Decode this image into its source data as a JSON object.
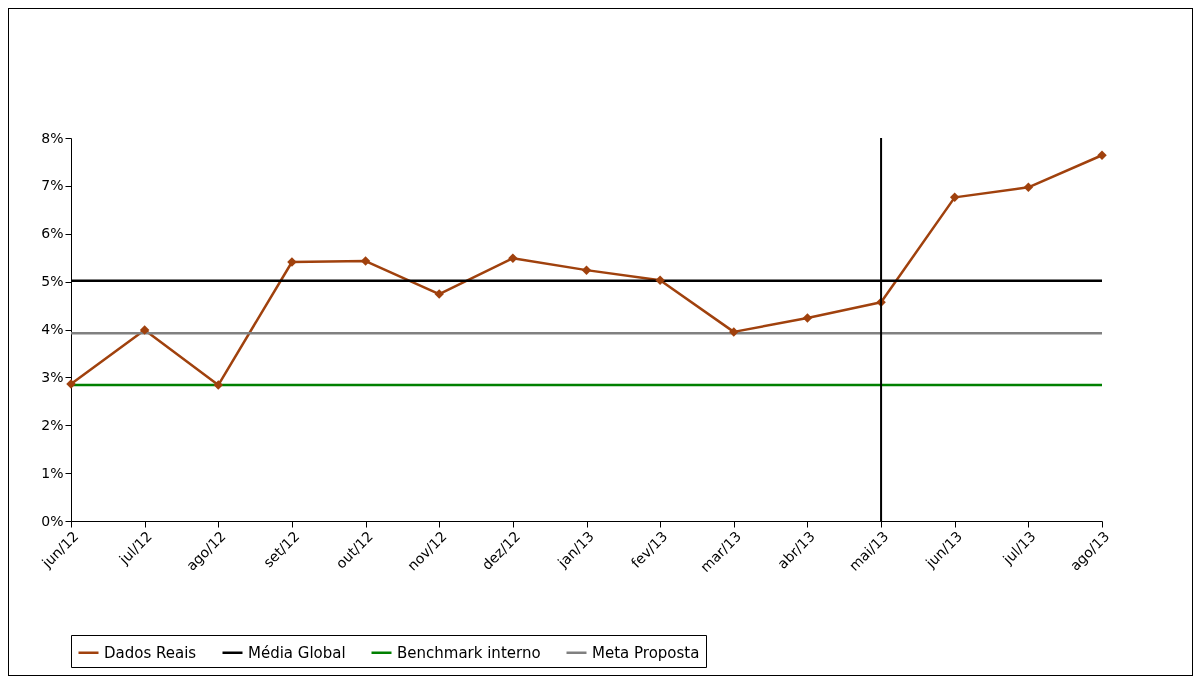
{
  "chart_data": {
    "type": "line",
    "categories": [
      "jun/12",
      "jul/12",
      "ago/12",
      "set/12",
      "out/12",
      "nov/12",
      "dez/12",
      "jan/13",
      "fev/13",
      "mar/13",
      "abr/13",
      "mai/13",
      "jun/13",
      "jul/13",
      "ago/13"
    ],
    "series": [
      {
        "name": "Dados Reais",
        "color": "#a0410d",
        "values": [
          2.86,
          3.99,
          2.84,
          5.41,
          5.43,
          4.74,
          5.49,
          5.24,
          5.03,
          3.95,
          4.24,
          4.57,
          6.76,
          6.97,
          7.64
        ]
      },
      {
        "name": "Média Global",
        "color": "#000000",
        "marker": "none",
        "values": [
          5.02,
          5.02,
          5.02,
          5.02,
          5.02,
          5.02,
          5.02,
          5.02,
          5.02,
          5.02,
          5.02,
          5.02,
          5.02,
          5.02,
          5.02
        ]
      },
      {
        "name": "Benchmark interno",
        "color": "#008000",
        "marker": "none",
        "values": [
          2.84,
          2.84,
          2.84,
          2.84,
          2.84,
          2.84,
          2.84,
          2.84,
          2.84,
          2.84,
          2.84,
          2.84,
          2.84,
          2.84,
          2.84
        ]
      },
      {
        "name": "Meta Proposta",
        "color": "#808080",
        "marker": "none",
        "values": [
          3.92,
          3.92,
          3.92,
          3.92,
          3.92,
          3.92,
          3.92,
          3.92,
          3.92,
          3.92,
          3.92,
          3.92,
          3.92,
          3.92,
          3.92
        ]
      }
    ],
    "ylim": [
      0,
      8
    ],
    "yticks": [
      {
        "value": 0,
        "label": "0%"
      },
      {
        "value": 1,
        "label": "1%"
      },
      {
        "value": 2,
        "label": "2%"
      },
      {
        "value": 3,
        "label": "3%"
      },
      {
        "value": 4,
        "label": "4%"
      },
      {
        "value": 5,
        "label": "5%"
      },
      {
        "value": 6,
        "label": "6%"
      },
      {
        "value": 7,
        "label": "7%"
      },
      {
        "value": 8,
        "label": "8%"
      }
    ],
    "ref_lines": [
      {
        "axis": "x",
        "value": "mai/13",
        "color": "#000000"
      }
    ],
    "grid": false,
    "legend": "bottom",
    "marker": "diamond",
    "line_style": "solid"
  }
}
